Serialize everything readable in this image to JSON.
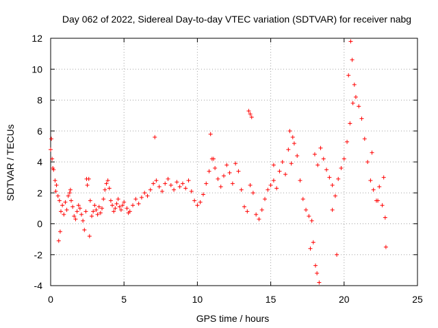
{
  "chart_data": {
    "type": "scatter",
    "title": "Day 062 of 2022, Sidereal Day-to-day VTEC variation (SDTVAR) for receiver nabg",
    "xlabel": "GPS time / hours",
    "ylabel": "SDTVAR / TECUs",
    "xlim": [
      0,
      25
    ],
    "ylim": [
      -4,
      12
    ],
    "xticks": [
      0,
      5,
      10,
      15,
      20,
      25
    ],
    "yticks": [
      -4,
      -2,
      0,
      2,
      4,
      6,
      8,
      10,
      12
    ],
    "grid": true,
    "marker": "plus",
    "color": "#ff0000",
    "series": [
      {
        "name": "SDTVAR",
        "x": [
          0.0,
          0.1,
          0.2,
          0.3,
          0.4,
          0.5,
          0.6,
          0.7,
          0.8,
          0.9,
          1.0,
          1.1,
          1.2,
          1.3,
          1.4,
          1.5,
          1.6,
          1.7,
          1.8,
          1.9,
          2.0,
          2.1,
          2.2,
          2.3,
          2.4,
          2.5,
          2.6,
          2.7,
          2.8,
          2.9,
          3.0,
          3.1,
          3.2,
          3.3,
          3.4,
          3.5,
          3.6,
          3.7,
          3.8,
          3.9,
          4.0,
          4.1,
          4.2,
          4.3,
          4.4,
          4.5,
          4.6,
          4.7,
          4.8,
          4.9,
          5.0,
          5.2,
          5.4,
          5.6,
          5.8,
          6.0,
          6.2,
          6.4,
          6.6,
          6.8,
          7.0,
          7.2,
          7.4,
          7.6,
          7.8,
          8.0,
          8.2,
          8.4,
          8.6,
          8.8,
          9.0,
          9.2,
          9.4,
          9.6,
          9.8,
          10.0,
          10.2,
          10.4,
          10.6,
          10.8,
          11.0,
          11.2,
          11.4,
          11.6,
          11.8,
          12.0,
          12.2,
          12.4,
          12.6,
          12.8,
          13.0,
          13.2,
          13.4,
          13.6,
          13.8,
          14.0,
          14.2,
          14.4,
          14.6,
          14.8,
          15.0,
          15.2,
          15.4,
          15.6,
          15.8,
          16.0,
          16.2,
          16.4,
          16.6,
          16.8,
          17.0,
          17.2,
          17.4,
          17.6,
          17.8,
          18.0,
          18.2,
          18.4,
          18.6,
          18.8,
          19.0,
          19.2,
          19.4,
          19.6,
          19.8,
          20.0,
          20.2,
          20.4,
          20.6,
          20.8,
          21.0,
          21.2,
          21.4,
          21.6,
          21.8,
          22.0,
          22.2,
          22.4,
          22.6,
          22.8,
          0.05,
          0.15,
          0.35,
          0.55,
          0.65,
          1.35,
          2.45,
          2.65,
          5.3,
          7.1,
          10.9,
          11.1,
          13.5,
          13.6,
          13.7,
          15.2,
          16.3,
          16.5,
          17.7,
          17.9,
          18.05,
          18.15,
          18.3,
          19.2,
          19.5,
          20.3,
          20.45,
          20.55,
          20.7,
          21.9,
          22.3,
          22.7,
          22.85
        ],
        "y": [
          4.8,
          4.2,
          3.5,
          2.8,
          2.5,
          1.8,
          1.5,
          0.8,
          1.2,
          0.6,
          1.4,
          0.9,
          1.8,
          2.0,
          1.5,
          1.1,
          0.5,
          0.3,
          0.8,
          1.2,
          1.0,
          0.6,
          0.2,
          -0.4,
          0.8,
          2.5,
          2.9,
          1.5,
          0.5,
          0.8,
          1.2,
          0.9,
          0.6,
          1.1,
          0.7,
          1.0,
          1.6,
          2.2,
          2.6,
          2.8,
          2.3,
          1.5,
          1.2,
          0.8,
          1.0,
          1.3,
          1.6,
          1.1,
          0.9,
          1.2,
          1.4,
          1.0,
          0.8,
          1.2,
          1.6,
          1.3,
          1.7,
          2.0,
          1.8,
          2.2,
          2.6,
          2.8,
          2.4,
          2.1,
          2.6,
          2.9,
          2.5,
          2.2,
          2.7,
          2.4,
          2.6,
          2.3,
          2.8,
          2.1,
          1.5,
          1.2,
          1.4,
          1.9,
          2.6,
          3.4,
          4.2,
          3.6,
          2.9,
          2.4,
          3.1,
          3.8,
          3.3,
          2.6,
          3.9,
          3.4,
          2.2,
          1.1,
          0.8,
          2.5,
          2.0,
          0.6,
          0.3,
          0.9,
          1.6,
          2.2,
          2.5,
          2.8,
          2.3,
          3.4,
          4.0,
          3.2,
          4.8,
          3.9,
          5.2,
          4.4,
          2.8,
          1.6,
          0.9,
          0.5,
          0.2,
          4.5,
          3.8,
          4.9,
          4.2,
          3.5,
          3.0,
          2.5,
          1.8,
          2.9,
          3.6,
          4.2,
          5.3,
          6.5,
          7.8,
          8.2,
          7.6,
          6.8,
          5.5,
          4.0,
          2.8,
          2.2,
          1.5,
          2.4,
          1.2,
          0.4,
          5.5,
          3.6,
          2.1,
          -1.1,
          -0.5,
          2.2,
          2.9,
          -0.8,
          0.7,
          5.6,
          5.8,
          4.2,
          7.3,
          7.1,
          6.9,
          3.8,
          6.0,
          5.6,
          -1.6,
          -1.2,
          -2.7,
          -3.2,
          -3.8,
          0.9,
          -2.0,
          9.6,
          11.8,
          10.6,
          9.0,
          4.6,
          1.5,
          3.0,
          -1.5
        ]
      }
    ]
  }
}
